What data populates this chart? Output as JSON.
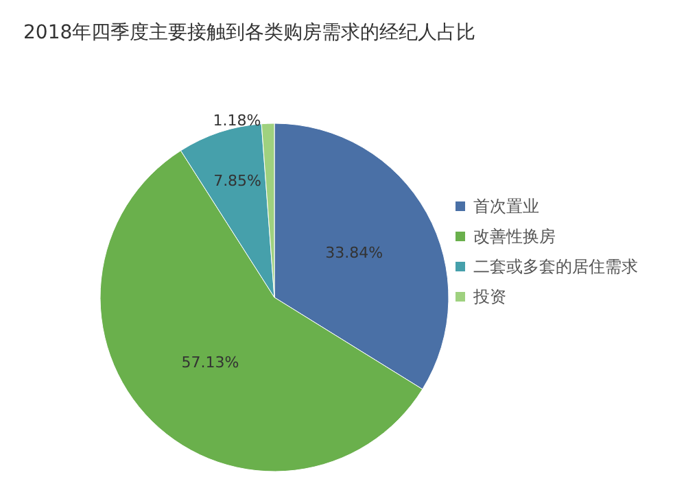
{
  "chart_data": {
    "type": "pie",
    "title": "2018年四季度主要接触到各类购房需求的经纪人占比",
    "categories": [
      "首次置业",
      "改善性换房",
      "二套或多套的居住需求",
      "投资"
    ],
    "values": [
      33.84,
      57.13,
      7.85,
      1.18
    ],
    "colors": [
      "#4a70a6",
      "#6ab04c",
      "#46a0ab",
      "#9fd17f"
    ],
    "value_labels": [
      "33.84%",
      "57.13%",
      "7.85%",
      "1.18%"
    ],
    "legend": "right"
  }
}
